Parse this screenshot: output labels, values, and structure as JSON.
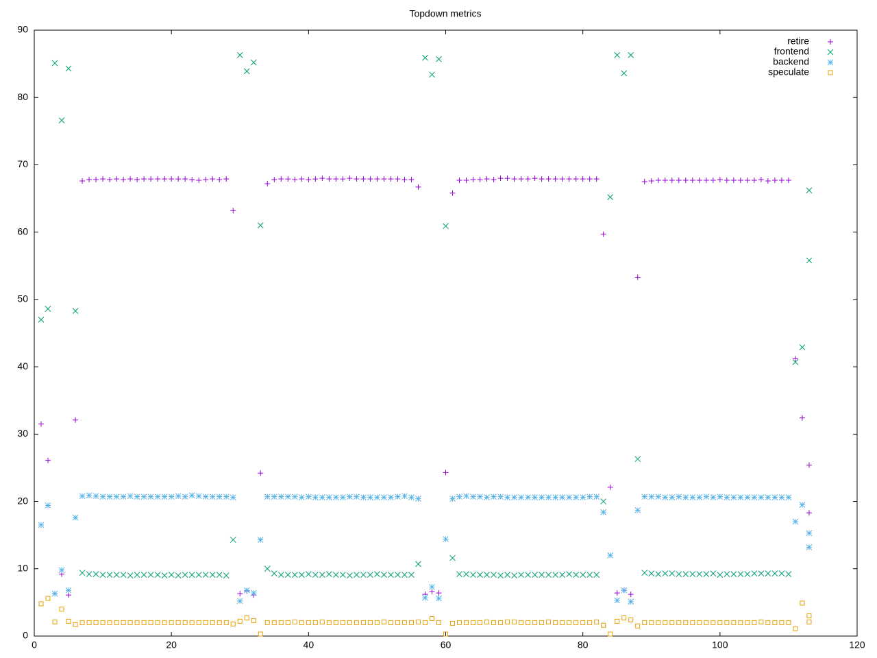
{
  "chart_data": {
    "type": "scatter",
    "title": "Topdown metrics",
    "xlim": [
      0,
      120
    ],
    "ylim": [
      0,
      90
    ],
    "xticks": [
      0,
      20,
      40,
      60,
      80,
      100,
      120
    ],
    "yticks": [
      0,
      10,
      20,
      30,
      40,
      50,
      60,
      70,
      80,
      90
    ],
    "grid": false,
    "legend": "top-right",
    "x": [
      1,
      2,
      3,
      4,
      5,
      6,
      7,
      8,
      9,
      10,
      11,
      12,
      13,
      14,
      15,
      16,
      17,
      18,
      19,
      20,
      21,
      22,
      23,
      24,
      25,
      26,
      27,
      28,
      29,
      30,
      31,
      32,
      33,
      34,
      35,
      36,
      37,
      38,
      39,
      40,
      41,
      42,
      43,
      44,
      45,
      46,
      47,
      48,
      49,
      50,
      51,
      52,
      53,
      54,
      55,
      56,
      57,
      58,
      59,
      60,
      61,
      62,
      63,
      64,
      65,
      66,
      67,
      68,
      69,
      70,
      71,
      72,
      73,
      74,
      75,
      76,
      77,
      78,
      79,
      80,
      81,
      82,
      83,
      84,
      85,
      86,
      87,
      88,
      89,
      90,
      91,
      92,
      93,
      94,
      95,
      96,
      97,
      98,
      99,
      100,
      101,
      102,
      103,
      104,
      105,
      106,
      107,
      108,
      109,
      110,
      111,
      112,
      113,
      113
    ],
    "series": [
      {
        "name": "retire",
        "color": "#9400d3",
        "marker": "plus",
        "values": [
          31.5,
          26.1,
          6.3,
          9.2,
          6.1,
          32.1,
          67.6,
          67.8,
          67.8,
          67.9,
          67.8,
          67.9,
          67.8,
          67.9,
          67.8,
          67.9,
          67.9,
          67.9,
          67.9,
          67.9,
          67.9,
          67.9,
          67.8,
          67.7,
          67.8,
          67.9,
          67.8,
          67.9,
          63.2,
          6.3,
          6.7,
          6.1,
          24.2,
          67.2,
          67.8,
          67.9,
          67.9,
          67.8,
          67.9,
          67.8,
          67.9,
          68.0,
          67.9,
          67.9,
          67.9,
          68.0,
          67.9,
          67.9,
          67.9,
          67.9,
          67.9,
          67.9,
          67.9,
          67.8,
          67.8,
          66.7,
          6.2,
          6.6,
          6.4,
          24.3,
          65.8,
          67.7,
          67.7,
          67.8,
          67.8,
          67.9,
          67.8,
          68.0,
          68.0,
          67.9,
          67.9,
          67.9,
          68.0,
          67.9,
          67.9,
          67.9,
          67.9,
          67.9,
          67.9,
          67.9,
          67.9,
          67.9,
          59.7,
          22.1,
          6.4,
          6.8,
          6.2,
          53.3,
          67.5,
          67.6,
          67.7,
          67.7,
          67.7,
          67.7,
          67.7,
          67.7,
          67.7,
          67.7,
          67.7,
          67.8,
          67.7,
          67.7,
          67.7,
          67.7,
          67.7,
          67.8,
          67.6,
          67.7,
          67.7,
          67.7,
          41.2,
          32.4,
          25.4,
          18.3
        ]
      },
      {
        "name": "frontend",
        "color": "#009e73",
        "marker": "cross",
        "values": [
          47.0,
          48.6,
          85.1,
          76.6,
          84.3,
          48.3,
          9.4,
          9.2,
          9.2,
          9.1,
          9.1,
          9.1,
          9.1,
          9.0,
          9.1,
          9.1,
          9.1,
          9.1,
          9.0,
          9.1,
          9.0,
          9.1,
          9.1,
          9.1,
          9.1,
          9.1,
          9.1,
          9.0,
          14.3,
          86.3,
          83.9,
          85.2,
          61.0,
          10.0,
          9.3,
          9.1,
          9.1,
          9.1,
          9.1,
          9.2,
          9.1,
          9.1,
          9.2,
          9.1,
          9.1,
          9.0,
          9.1,
          9.1,
          9.1,
          9.2,
          9.1,
          9.1,
          9.1,
          9.1,
          9.1,
          10.7,
          85.9,
          83.4,
          85.7,
          60.9,
          11.6,
          9.2,
          9.2,
          9.1,
          9.1,
          9.1,
          9.1,
          9.0,
          9.1,
          9.0,
          9.1,
          9.1,
          9.1,
          9.1,
          9.1,
          9.1,
          9.1,
          9.2,
          9.1,
          9.1,
          9.1,
          9.1,
          20.0,
          65.2,
          86.3,
          83.6,
          86.3,
          26.3,
          9.4,
          9.3,
          9.2,
          9.3,
          9.3,
          9.2,
          9.2,
          9.2,
          9.2,
          9.2,
          9.3,
          9.1,
          9.2,
          9.2,
          9.2,
          9.2,
          9.3,
          9.3,
          9.3,
          9.3,
          9.3,
          9.2,
          40.7,
          42.9,
          66.2,
          55.8
        ]
      },
      {
        "name": "backend",
        "color": "#56b4e9",
        "marker": "star",
        "values": [
          16.5,
          19.4,
          6.3,
          9.8,
          6.8,
          17.6,
          20.8,
          20.9,
          20.8,
          20.7,
          20.7,
          20.7,
          20.7,
          20.8,
          20.7,
          20.7,
          20.7,
          20.7,
          20.7,
          20.7,
          20.8,
          20.7,
          20.9,
          20.8,
          20.7,
          20.7,
          20.7,
          20.7,
          20.6,
          5.2,
          6.8,
          6.4,
          14.3,
          20.7,
          20.7,
          20.7,
          20.7,
          20.7,
          20.6,
          20.7,
          20.6,
          20.6,
          20.6,
          20.6,
          20.6,
          20.7,
          20.7,
          20.6,
          20.6,
          20.6,
          20.6,
          20.6,
          20.7,
          20.8,
          20.6,
          20.4,
          5.7,
          7.3,
          5.6,
          14.4,
          20.4,
          20.7,
          20.8,
          20.7,
          20.7,
          20.6,
          20.7,
          20.7,
          20.6,
          20.6,
          20.6,
          20.6,
          20.6,
          20.6,
          20.6,
          20.6,
          20.6,
          20.6,
          20.6,
          20.6,
          20.7,
          20.7,
          18.4,
          12.0,
          5.3,
          6.8,
          5.1,
          18.7,
          20.7,
          20.7,
          20.7,
          20.6,
          20.6,
          20.7,
          20.6,
          20.6,
          20.6,
          20.7,
          20.6,
          20.7,
          20.6,
          20.6,
          20.6,
          20.6,
          20.6,
          20.6,
          20.6,
          20.6,
          20.6,
          20.6,
          17.0,
          19.5,
          15.3,
          13.2
        ]
      },
      {
        "name": "speculate",
        "color": "#e69f00",
        "marker": "square",
        "values": [
          4.8,
          5.6,
          2.1,
          4.0,
          2.2,
          1.7,
          2.0,
          2.0,
          2.0,
          2.0,
          2.0,
          2.0,
          2.0,
          2.0,
          2.0,
          2.0,
          2.0,
          2.0,
          2.0,
          2.0,
          2.0,
          2.0,
          2.0,
          2.0,
          2.0,
          2.0,
          2.0,
          2.0,
          1.8,
          2.2,
          2.7,
          2.3,
          0.3,
          2.0,
          2.0,
          2.0,
          2.0,
          2.1,
          2.0,
          2.0,
          2.0,
          2.1,
          2.0,
          2.0,
          2.0,
          2.0,
          2.0,
          2.0,
          2.0,
          2.0,
          2.1,
          2.0,
          2.0,
          2.0,
          2.0,
          2.1,
          2.0,
          2.6,
          2.0,
          0.3,
          1.9,
          2.0,
          2.0,
          2.0,
          2.0,
          2.1,
          2.0,
          2.0,
          2.1,
          2.1,
          2.0,
          2.0,
          2.0,
          2.0,
          2.1,
          2.0,
          2.0,
          2.0,
          2.0,
          2.0,
          2.0,
          2.1,
          1.6,
          0.3,
          2.2,
          2.7,
          2.4,
          1.5,
          2.0,
          2.0,
          2.0,
          2.0,
          2.0,
          2.0,
          2.0,
          2.0,
          2.0,
          2.0,
          2.0,
          2.0,
          2.0,
          2.0,
          2.0,
          2.0,
          2.0,
          2.1,
          2.0,
          2.0,
          2.0,
          2.0,
          1.1,
          4.9,
          3.0,
          2.1
        ]
      }
    ]
  }
}
